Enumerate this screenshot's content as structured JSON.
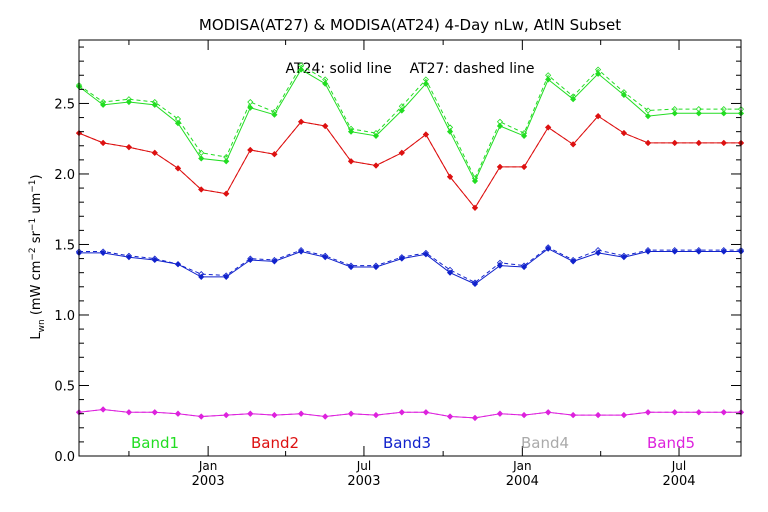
{
  "chart_data": {
    "type": "line",
    "title": "MODISA(AT27) & MODISA(AT24) 4-Day nLw, AtlN Subset",
    "annotation": "AT24: solid line    AT27: dashed line",
    "ylabel": {
      "main": "L",
      "sub": "wn",
      "unit_open": " (mW cm",
      "exp1": "−2",
      "unit_mid": " sr",
      "exp2": "−1",
      "unit_end": " um",
      "exp3": "−1",
      "unit_close": ")"
    },
    "xlim": [
      "2002-08-04",
      "2004-09-11"
    ],
    "ylim": [
      0,
      2.95
    ],
    "yticks": [
      {
        "value": 0.0,
        "label": "0.0"
      },
      {
        "value": 0.5,
        "label": "0.5"
      },
      {
        "value": 1.0,
        "label": "1.0"
      },
      {
        "value": 1.5,
        "label": "1.5"
      },
      {
        "value": 2.0,
        "label": "2.0"
      },
      {
        "value": 2.5,
        "label": "2.5"
      }
    ],
    "xticks_major": [
      {
        "date": "2003-01-01",
        "month": "Jan",
        "year": "2003"
      },
      {
        "date": "2003-07-01",
        "month": "Jul",
        "year": "2003"
      },
      {
        "date": "2004-01-01",
        "month": "Jan",
        "year": "2004"
      },
      {
        "date": "2004-07-01",
        "month": "Jul",
        "year": "2004"
      }
    ],
    "xticks_minor": [
      "2002-10-01",
      "2003-04-01",
      "2003-10-01",
      "2004-04-01"
    ],
    "x": [
      "2002-08-04",
      "2002-09-01",
      "2002-10-01",
      "2002-10-31",
      "2002-11-27",
      "2002-12-24",
      "2003-01-22",
      "2003-02-19",
      "2003-03-19",
      "2003-04-19",
      "2003-05-17",
      "2003-06-16",
      "2003-07-15",
      "2003-08-14",
      "2003-09-11",
      "2003-10-09",
      "2003-11-07",
      "2003-12-06",
      "2004-01-03",
      "2004-01-31",
      "2004-02-29",
      "2004-03-29",
      "2004-04-28",
      "2004-05-26",
      "2004-06-26",
      "2004-07-24",
      "2004-08-22",
      "2004-09-11"
    ],
    "series": [
      {
        "name": "Band1",
        "color": "#22dd22",
        "AT24": [
          2.62,
          2.49,
          2.51,
          2.49,
          2.36,
          2.11,
          2.09,
          2.47,
          2.42,
          2.74,
          2.64,
          2.3,
          2.27,
          2.45,
          2.64,
          2.3,
          1.95,
          2.34,
          2.27,
          2.67,
          2.53,
          2.71,
          2.56,
          2.41,
          2.43,
          2.43,
          2.43,
          2.43
        ],
        "AT27": [
          2.63,
          2.51,
          2.53,
          2.51,
          2.39,
          2.15,
          2.12,
          2.51,
          2.44,
          2.77,
          2.67,
          2.32,
          2.29,
          2.48,
          2.67,
          2.33,
          1.97,
          2.37,
          2.29,
          2.7,
          2.55,
          2.74,
          2.58,
          2.45,
          2.46,
          2.46,
          2.46,
          2.46
        ]
      },
      {
        "name": "Band2",
        "color": "#dd1111",
        "AT24": [
          2.29,
          2.22,
          2.19,
          2.15,
          2.04,
          1.89,
          1.86,
          2.17,
          2.14,
          2.37,
          2.34,
          2.09,
          2.06,
          2.15,
          2.28,
          1.98,
          1.76,
          2.05,
          2.05,
          2.33,
          2.21,
          2.41,
          2.29,
          2.22,
          2.22,
          2.22,
          2.22,
          2.22
        ],
        "AT27": [
          2.29,
          2.22,
          2.19,
          2.15,
          2.04,
          1.89,
          1.86,
          2.17,
          2.14,
          2.37,
          2.34,
          2.09,
          2.06,
          2.15,
          2.28,
          1.98,
          1.76,
          2.05,
          2.05,
          2.33,
          2.21,
          2.41,
          2.29,
          2.22,
          2.22,
          2.22,
          2.22,
          2.22
        ]
      },
      {
        "name": "Band3",
        "color": "#1122cc",
        "AT24": [
          1.44,
          1.44,
          1.41,
          1.39,
          1.36,
          1.27,
          1.27,
          1.39,
          1.38,
          1.45,
          1.41,
          1.34,
          1.34,
          1.4,
          1.43,
          1.3,
          1.22,
          1.35,
          1.34,
          1.47,
          1.38,
          1.44,
          1.41,
          1.45,
          1.45,
          1.45,
          1.45,
          1.45
        ],
        "AT27": [
          1.45,
          1.45,
          1.42,
          1.4,
          1.36,
          1.29,
          1.28,
          1.4,
          1.39,
          1.46,
          1.42,
          1.35,
          1.35,
          1.41,
          1.44,
          1.32,
          1.23,
          1.37,
          1.35,
          1.48,
          1.39,
          1.46,
          1.42,
          1.46,
          1.46,
          1.46,
          1.46,
          1.46
        ]
      },
      {
        "name": "Band4",
        "color": "#aaaaaa",
        "AT24": [],
        "AT27": []
      },
      {
        "name": "Band5",
        "color": "#dd22dd",
        "AT24": [
          0.31,
          0.33,
          0.31,
          0.31,
          0.3,
          0.28,
          0.29,
          0.3,
          0.29,
          0.3,
          0.28,
          0.3,
          0.29,
          0.31,
          0.31,
          0.28,
          0.27,
          0.3,
          0.29,
          0.31,
          0.29,
          0.29,
          0.29,
          0.31,
          0.31,
          0.31,
          0.31,
          0.31
        ],
        "AT27": [
          0.31,
          0.33,
          0.31,
          0.31,
          0.3,
          0.28,
          0.29,
          0.3,
          0.29,
          0.3,
          0.28,
          0.3,
          0.29,
          0.31,
          0.31,
          0.28,
          0.27,
          0.3,
          0.29,
          0.31,
          0.29,
          0.29,
          0.29,
          0.31,
          0.31,
          0.31,
          0.31,
          0.31
        ]
      }
    ],
    "legend_placement": "bottom"
  }
}
